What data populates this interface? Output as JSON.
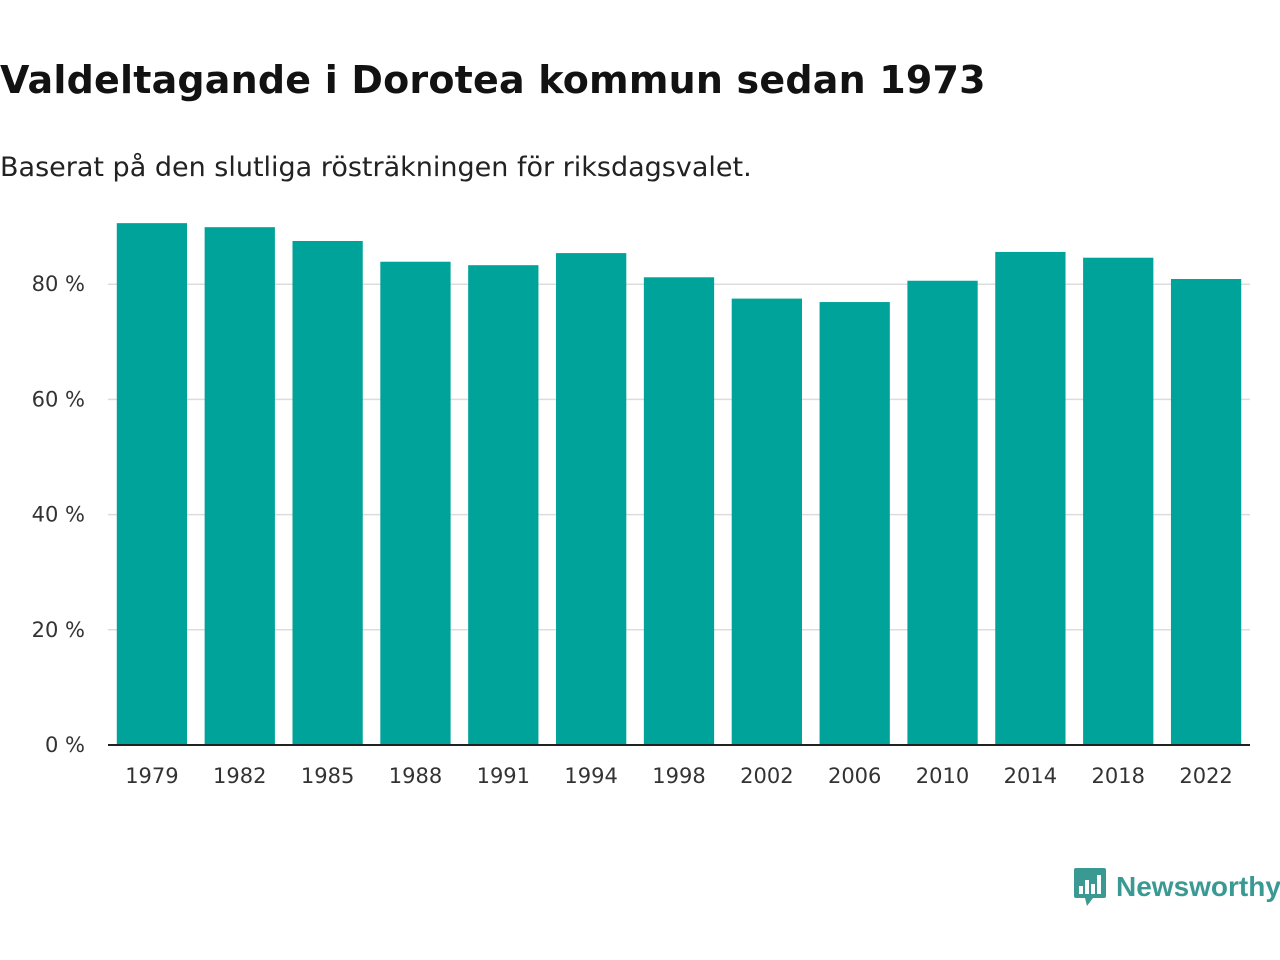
{
  "title": "Valdeltagande i Dorotea kommun sedan 1973",
  "subtitle": "Baserat på den slutliga rösträkningen för riksdagsvalet.",
  "brand": {
    "name": "Newsworthy",
    "color": "#3a9a93",
    "icon": "chart-speech-bubble-icon"
  },
  "chart_data": {
    "type": "bar",
    "categories": [
      "1979",
      "1982",
      "1985",
      "1988",
      "1991",
      "1994",
      "1998",
      "2002",
      "2006",
      "2010",
      "2014",
      "2018",
      "2022"
    ],
    "values": [
      90.6,
      89.9,
      87.5,
      83.9,
      83.3,
      85.4,
      81.2,
      77.5,
      76.9,
      80.6,
      85.6,
      84.6,
      80.9
    ],
    "ylim": [
      0,
      100
    ],
    "yticks": [
      0,
      20,
      40,
      60,
      80
    ],
    "ytick_labels": [
      "0 %",
      "20 %",
      "40 %",
      "60 %",
      "80 %"
    ],
    "xlabel": "",
    "ylabel": "",
    "grid": true,
    "bar_color": "#00a39a"
  }
}
